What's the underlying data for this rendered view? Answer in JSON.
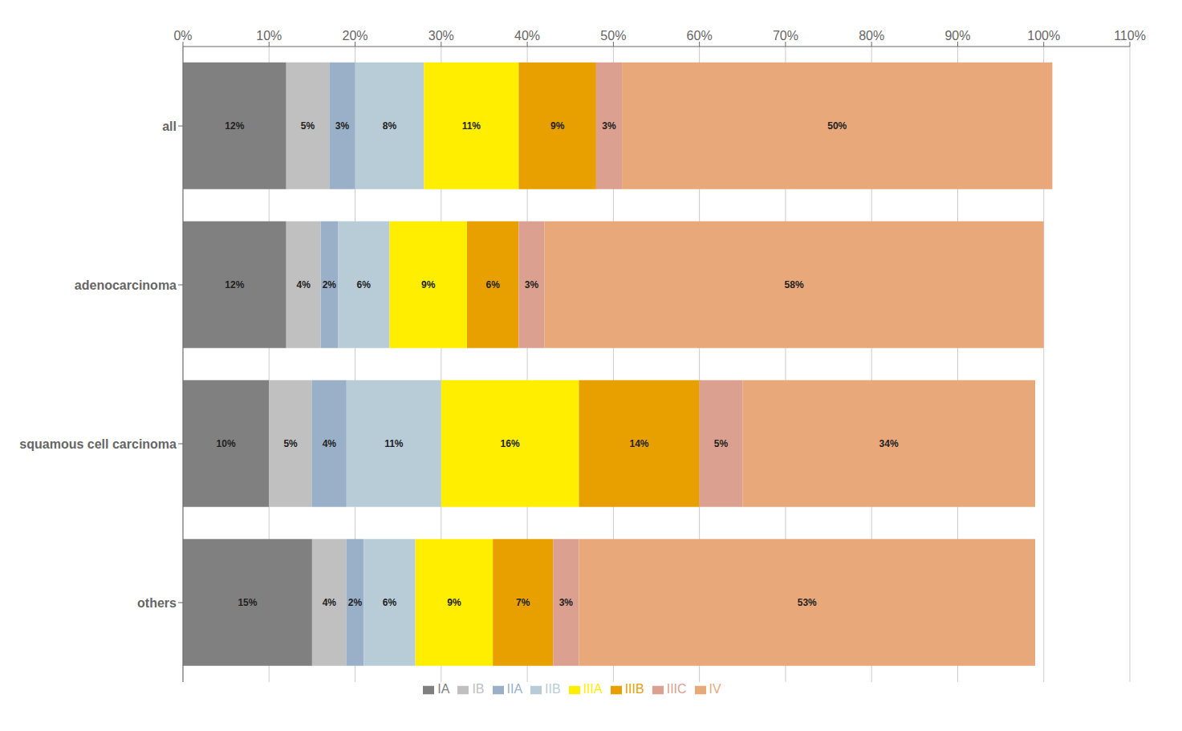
{
  "chart_data": {
    "type": "bar",
    "orientation": "horizontal",
    "stacked": true,
    "data_labels": true,
    "grid": true,
    "legend": "bottom",
    "categories": [
      "all",
      "adenocarcinoma",
      "squamous cell carcinoma",
      "others"
    ],
    "series": [
      {
        "name": "IA",
        "color": "#808080",
        "values": [
          12,
          12,
          10,
          15
        ],
        "value_labels": [
          "12%",
          "12%",
          "10%",
          "15%"
        ]
      },
      {
        "name": "IB",
        "color": "#c0c0c0",
        "values": [
          5,
          4,
          5,
          4
        ],
        "value_labels": [
          "5%",
          "4%",
          "5%",
          "4%"
        ]
      },
      {
        "name": "IIA",
        "color": "#9ab0c8",
        "values": [
          3,
          2,
          4,
          2
        ],
        "value_labels": [
          "3%",
          "2%",
          "4%",
          "2%"
        ]
      },
      {
        "name": "IIB",
        "color": "#b8ccd8",
        "values": [
          8,
          6,
          11,
          6
        ],
        "value_labels": [
          "8%",
          "6%",
          "11%",
          "6%"
        ]
      },
      {
        "name": "IIIA",
        "color": "#ffee00",
        "values": [
          11,
          9,
          16,
          9
        ],
        "value_labels": [
          "11%",
          "9%",
          "16%",
          "9%"
        ]
      },
      {
        "name": "IIIB",
        "color": "#e8a000",
        "values": [
          9,
          6,
          14,
          7
        ],
        "value_labels": [
          "9%",
          "6%",
          "14%",
          "7%"
        ]
      },
      {
        "name": "IIIC",
        "color": "#dba090",
        "values": [
          3,
          3,
          5,
          3
        ],
        "value_labels": [
          "3%",
          "3%",
          "5%",
          "3%"
        ]
      },
      {
        "name": "IV",
        "color": "#e8a87a",
        "values": [
          50,
          58,
          34,
          53
        ],
        "value_labels": [
          "50%",
          "58%",
          "34%",
          "53%"
        ]
      }
    ],
    "xlim": [
      0,
      110
    ],
    "xticks": [
      {
        "value": 0,
        "label": "0%"
      },
      {
        "value": 10,
        "label": "10%"
      },
      {
        "value": 20,
        "label": "20%"
      },
      {
        "value": 30,
        "label": "30%"
      },
      {
        "value": 40,
        "label": "40%"
      },
      {
        "value": 50,
        "label": "50%"
      },
      {
        "value": 60,
        "label": "60%"
      },
      {
        "value": 70,
        "label": "70%"
      },
      {
        "value": 80,
        "label": "80%"
      },
      {
        "value": 90,
        "label": "90%"
      },
      {
        "value": 100,
        "label": "100%"
      },
      {
        "value": 110,
        "label": "110%"
      }
    ]
  }
}
